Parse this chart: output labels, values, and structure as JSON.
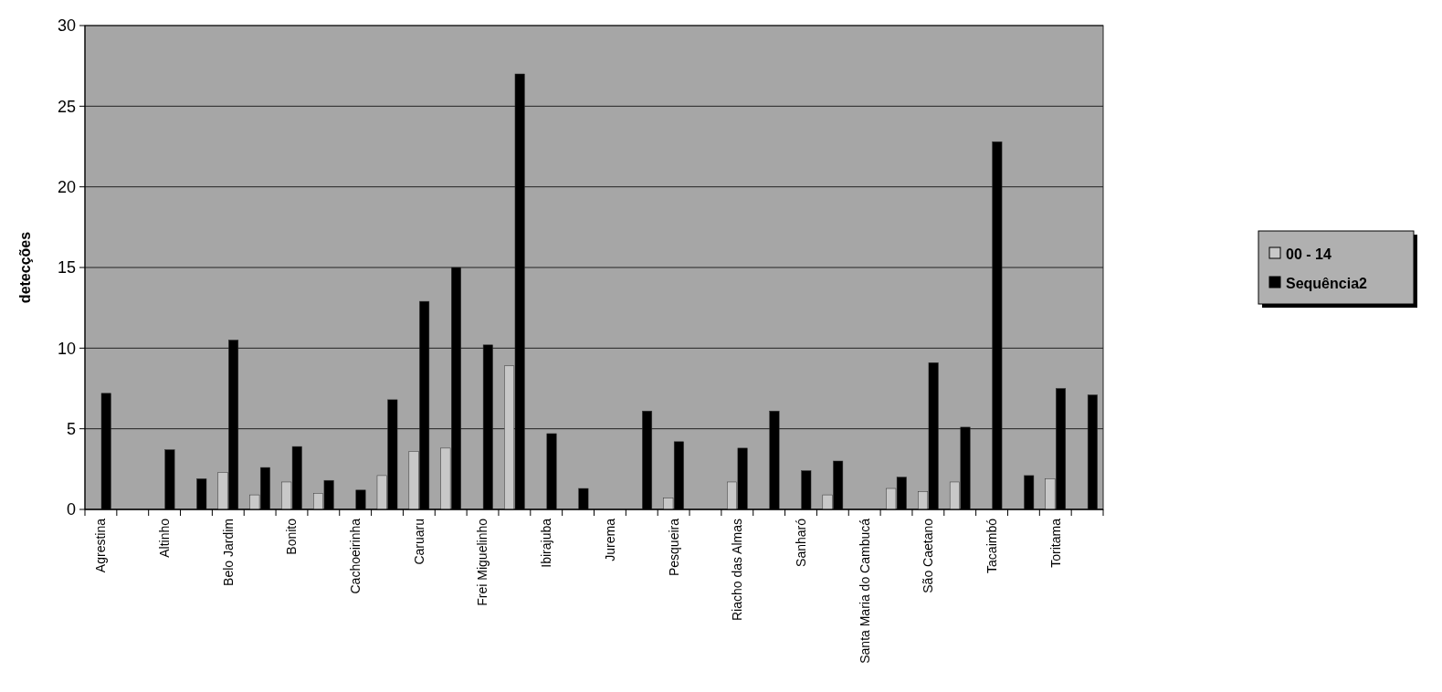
{
  "chart_data": {
    "type": "bar",
    "ylabel": "detecções",
    "categories": [
      "Agrestina",
      null,
      "Altinho",
      null,
      "Belo Jardim",
      null,
      "Bonito",
      null,
      "Cachoeirinha",
      null,
      "Caruaru",
      null,
      "Frei Miguelinho",
      null,
      "Ibirajuba",
      null,
      "Jurema",
      null,
      "Pesqueira",
      null,
      "Riacho das Almas",
      null,
      "Sanharó",
      null,
      "Santa Maria do Cambucá",
      null,
      "São Caetano",
      null,
      "Tacaimbó",
      null,
      "Toritama",
      null
    ],
    "series": [
      {
        "name": "00 - 14",
        "color": "#c8c8c8",
        "values": [
          0,
          0,
          0,
          0,
          2.3,
          0.9,
          1.7,
          1.0,
          0,
          2.1,
          3.6,
          3.8,
          0,
          8.9,
          0,
          0,
          0,
          0,
          0.7,
          0,
          1.7,
          0,
          0,
          0.9,
          0,
          1.3,
          1.1,
          1.7,
          0,
          0,
          1.9,
          0
        ]
      },
      {
        "name": "Sequência2",
        "color": "#000000",
        "values": [
          7.2,
          0,
          3.7,
          1.9,
          10.5,
          2.6,
          3.9,
          1.8,
          1.2,
          6.8,
          12.9,
          15.0,
          10.2,
          27.0,
          4.7,
          1.3,
          0,
          6.1,
          4.2,
          0,
          3.8,
          6.1,
          2.4,
          3.0,
          0,
          2.0,
          9.1,
          5.1,
          22.8,
          2.1,
          7.5,
          7.1
        ]
      }
    ],
    "ylim": [
      0,
      30
    ],
    "yticks": [
      0,
      5,
      10,
      15,
      20,
      25,
      30
    ],
    "grid": "y",
    "legend": "right"
  }
}
